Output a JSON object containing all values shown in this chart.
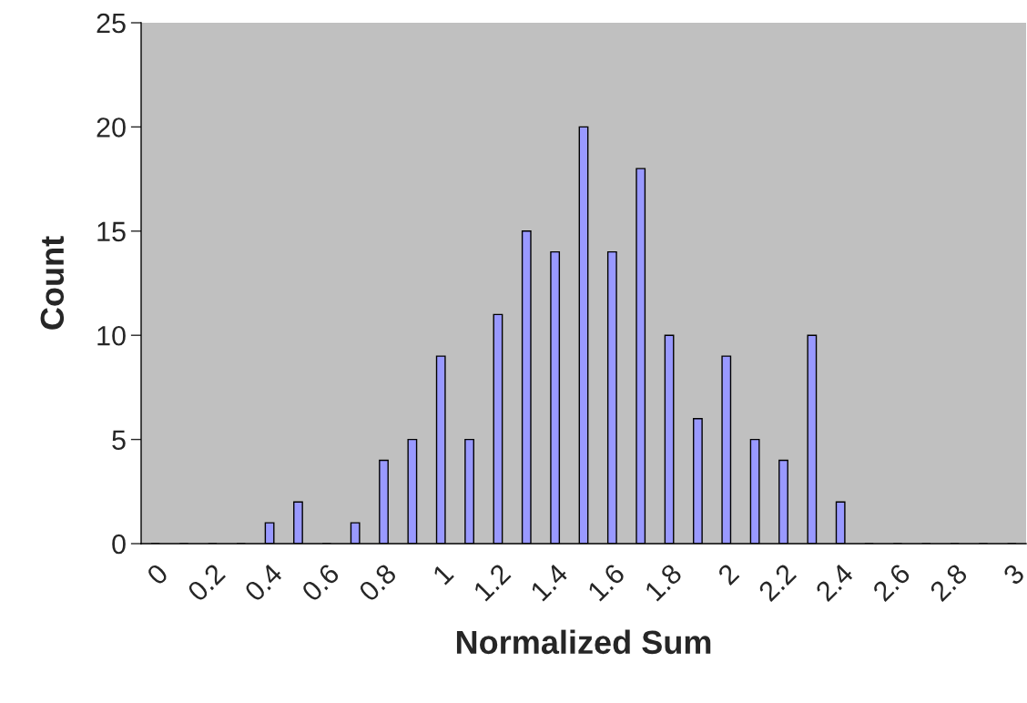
{
  "chart_data": {
    "type": "bar",
    "xlabel": "Normalized Sum",
    "ylabel": "Count",
    "categories": [
      "0",
      null,
      "0.2",
      null,
      "0.4",
      null,
      "0.6",
      null,
      "0.8",
      null,
      "1",
      null,
      "1.2",
      null,
      "1.4",
      null,
      "1.6",
      null,
      "1.8",
      null,
      "2",
      null,
      "2.2",
      null,
      "2.4",
      null,
      "2.6",
      null,
      "2.8",
      null,
      "3"
    ],
    "values": [
      0,
      0,
      0,
      0,
      1,
      2,
      0,
      1,
      4,
      5,
      9,
      5,
      11,
      15,
      14,
      20,
      14,
      18,
      10,
      6,
      9,
      5,
      4,
      10,
      2,
      0,
      0,
      0,
      0,
      0,
      0
    ],
    "color": "#9999ff",
    "ylim": [
      0,
      25
    ],
    "yticks": [
      0,
      5,
      10,
      15,
      20,
      25
    ],
    "grid": false,
    "legend": false
  }
}
